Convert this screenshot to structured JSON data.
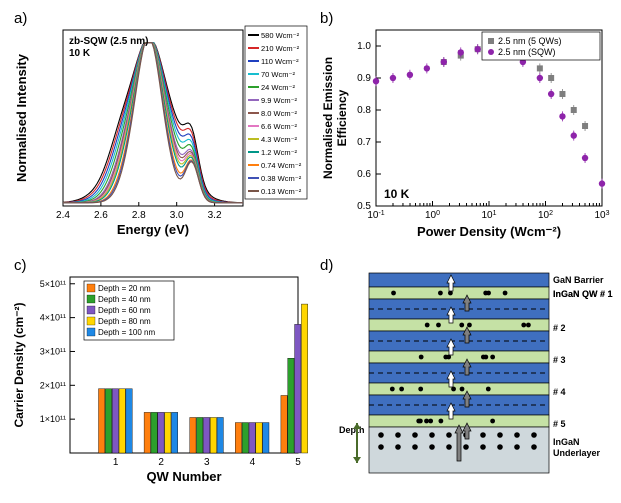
{
  "panels": {
    "a": {
      "label": "a)"
    },
    "b": {
      "label": "b)"
    },
    "c": {
      "label": "c)"
    },
    "d": {
      "label": "d)"
    }
  },
  "a": {
    "type": "line",
    "xlabel": "Energy (eV)",
    "ylabel": "Normalised Intensity",
    "xlim": [
      2.4,
      3.35
    ],
    "ylim": [
      0,
      1.1
    ],
    "xticks": [
      2.4,
      2.6,
      2.8,
      3.0,
      3.2
    ],
    "inline_title": "zb-SQW (2.5 nm)",
    "inline_sub": "10 K",
    "series": [
      {
        "label": "580 Wcm⁻²",
        "color": "#000000"
      },
      {
        "label": "210 Wcm⁻²",
        "color": "#d62728"
      },
      {
        "label": "110 Wcm⁻²",
        "color": "#1f3fbf"
      },
      {
        "label": "70 Wcm⁻²",
        "color": "#17becf"
      },
      {
        "label": "24 Wcm⁻²",
        "color": "#2ca02c"
      },
      {
        "label": "9.9 Wcm⁻²",
        "color": "#9467bd"
      },
      {
        "label": "8.0 Wcm⁻²",
        "color": "#8c564b"
      },
      {
        "label": "6.6 Wcm⁻²",
        "color": "#e377c2"
      },
      {
        "label": "4.3 Wcm⁻²",
        "color": "#bcbd22"
      },
      {
        "label": "1.2 Wcm⁻²",
        "color": "#009688"
      },
      {
        "label": "0.74 Wcm⁻²",
        "color": "#ff7f0e"
      },
      {
        "label": "0.38 Wcm⁻²",
        "color": "#3f51b5"
      },
      {
        "label": "0.13 Wcm⁻²",
        "color": "#795548"
      }
    ],
    "peak_x": 2.85,
    "half_widths": [
      0.22,
      0.21,
      0.2,
      0.19,
      0.18,
      0.17,
      0.165,
      0.16,
      0.155,
      0.15,
      0.14,
      0.135,
      0.13
    ],
    "right_bump_x": 3.08,
    "right_bump_h": 0.27,
    "background_color": "#ffffff",
    "axis_color": "#000000"
  },
  "b": {
    "type": "scatter",
    "xlabel": "Power Density (Wcm⁻²)",
    "ylabel": "Normalised Emission\nEfficiency",
    "xlim_log": [
      -1,
      3
    ],
    "ylim": [
      0.5,
      1.05
    ],
    "yticks": [
      0.5,
      0.6,
      0.7,
      0.8,
      0.9,
      1.0
    ],
    "inline_label": "10 K",
    "legend": [
      {
        "label": "2.5 nm (5 QWs)",
        "marker": "square",
        "color": "#7f7f7f"
      },
      {
        "label": "2.5 nm (SQW)",
        "marker": "circle",
        "color": "#8e24aa"
      }
    ],
    "series_sqw": {
      "color": "#8e24aa",
      "x_log": [
        -1,
        -0.7,
        -0.4,
        -0.1,
        0.2,
        0.5,
        0.8,
        1.0,
        1.1,
        1.3,
        1.6,
        1.9,
        2.1,
        2.3,
        2.5,
        2.7,
        3.0
      ],
      "y": [
        0.89,
        0.9,
        0.91,
        0.93,
        0.95,
        0.98,
        0.99,
        1.0,
        1.0,
        0.99,
        0.95,
        0.9,
        0.85,
        0.78,
        0.72,
        0.65,
        0.57
      ]
    },
    "series_5qw": {
      "color": "#7f7f7f",
      "x_log": [
        0.2,
        0.5,
        0.8,
        1.0,
        1.1,
        1.3,
        1.6,
        1.9,
        2.1,
        2.3,
        2.5,
        2.7
      ],
      "y": [
        0.95,
        0.97,
        0.99,
        1.0,
        1.0,
        0.99,
        0.97,
        0.93,
        0.9,
        0.85,
        0.8,
        0.75
      ]
    },
    "background_color": "#ffffff"
  },
  "c": {
    "type": "bar",
    "xlabel": "QW Number",
    "ylabel": "Carrier Density (cm⁻²)",
    "categories": [
      1,
      2,
      3,
      4,
      5
    ],
    "yticks_sci": [
      "1×10¹¹",
      "2×10¹¹",
      "3×10¹¹",
      "4×10¹¹",
      "5×10¹¹"
    ],
    "ytick_vals": [
      1,
      2,
      3,
      4,
      5
    ],
    "ylim": [
      0,
      5.2
    ],
    "series": [
      {
        "label": "Depth = 20 nm",
        "color": "#ff7f0e",
        "vals": [
          1.9,
          1.2,
          1.05,
          0.9,
          1.7
        ]
      },
      {
        "label": "Depth = 40 nm",
        "color": "#2ca02c",
        "vals": [
          1.9,
          1.2,
          1.05,
          0.9,
          2.8
        ]
      },
      {
        "label": "Depth = 60 nm",
        "color": "#7e57c2",
        "vals": [
          1.9,
          1.2,
          1.05,
          0.9,
          3.8
        ]
      },
      {
        "label": "Depth = 80 nm",
        "color": "#ffd600",
        "vals": [
          1.9,
          1.2,
          1.05,
          0.9,
          4.4
        ]
      },
      {
        "label": "Depth = 100 nm",
        "color": "#1e88e5",
        "vals": [
          1.9,
          1.2,
          1.05,
          0.9,
          4.8
        ]
      }
    ],
    "bar_group_width": 0.75
  },
  "d": {
    "type": "diagram",
    "labels": {
      "GaN": "GaN Barrier",
      "QW1": "InGaN QW # 1",
      "n2": "# 2",
      "n3": "# 3",
      "n4": "# 4",
      "n5": "# 5",
      "under": "InGaN\nUnderlayer",
      "depth": "Depth"
    },
    "colors": {
      "barrier": "#3f6fbf",
      "qw": "#c5e1a5",
      "under": "#cfd8dc",
      "dot": "#000000",
      "arrow_up": "#808080",
      "arrow_down": "#ffffff",
      "depth_arrow": "#4a6b2a"
    }
  }
}
